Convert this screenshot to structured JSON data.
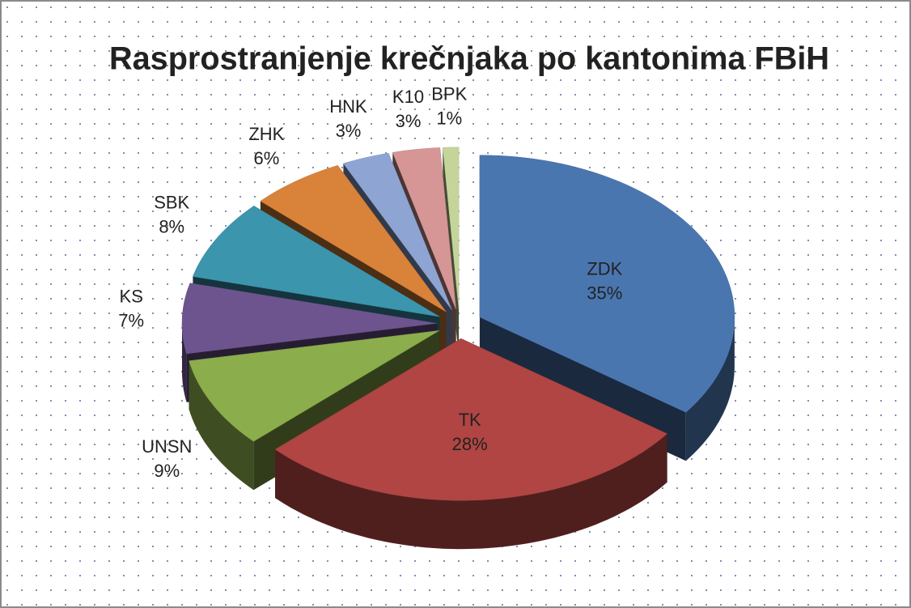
{
  "chart_data": {
    "type": "pie3d",
    "title": "Rasprostranjenje krečnjaka po kantonima FBiH",
    "categories": [
      "ZDK",
      "TK",
      "UNSN",
      "KS",
      "SBK",
      "ZHK",
      "HNK",
      "K10",
      "BPK"
    ],
    "values": [
      35,
      28,
      9,
      7,
      8,
      6,
      3,
      3,
      1
    ],
    "value_labels": [
      "35%",
      "28%",
      "9%",
      "7%",
      "8%",
      "6%",
      "3%",
      "3%",
      "1%"
    ],
    "colors": [
      "#4a76b0",
      "#b04543",
      "#8cad4b",
      "#6e548e",
      "#3b95ad",
      "#d9823a",
      "#8ea5d3",
      "#d69696",
      "#c5d59a"
    ]
  }
}
